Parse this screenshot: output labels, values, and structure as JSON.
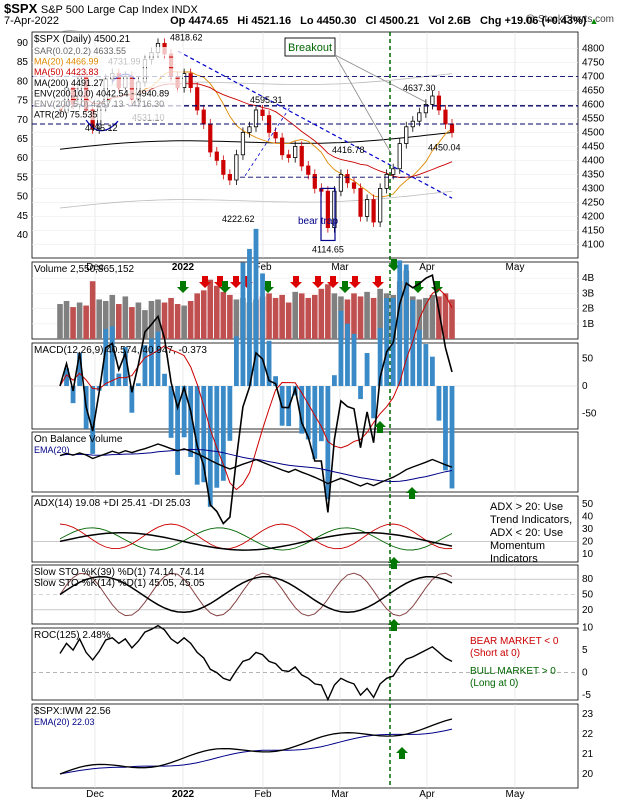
{
  "header": {
    "symbol": "$SPX",
    "name": "S&P 500 Large Cap Index  INDX",
    "date": "7-Apr-2022",
    "open": "Op 4474.65",
    "high": "Hi 4521.16",
    "low": "Lo 4450.30",
    "close": "Cl 4500.21",
    "volume": "Vol 2.6B",
    "change": "Chg +19.06 (+0.43%)",
    "change_marker": "▲",
    "watermark": "@ StockCharts.com"
  },
  "colors": {
    "up": "#000000",
    "down": "#cc0000",
    "volume_up": "#808080",
    "volume_down": "#c05050",
    "ma20": "#e08a00",
    "ma50": "#cc0000",
    "ma200": "#000000",
    "trend": "#0000cc",
    "macd_hist": "#3a8ac8",
    "marker_red": "#dd0000",
    "marker_green": "#007700",
    "signal_line": "#006600"
  },
  "months": [
    "Dec",
    "2022",
    "Feb",
    "Mar",
    "Apr",
    "May"
  ],
  "price_panel": {
    "title": "$SPX (Daily) 4500.21",
    "legend": [
      "SAR(0.02,0.2) 4633.55",
      "MA(20) 4466.99",
      "MA(50) 4423.83",
      "MA(200) 4491.27",
      "ENV(200,10.0) 4042.54 - 4940.89",
      "ENV(200,5.0) 4267.13 - 4716.30",
      "ATR(20) 75.535"
    ],
    "y_ticks_right": [
      "4800",
      "4750",
      "4700",
      "4650",
      "4600",
      "4550",
      "4500",
      "4450",
      "4400",
      "4350",
      "4300",
      "4250",
      "4200",
      "4150",
      "4100"
    ],
    "y_ticks_left": [
      "90",
      "85",
      "80",
      "75",
      "70",
      "65",
      "60",
      "55",
      "50",
      "45",
      "40"
    ],
    "price_labels": [
      "4818.62",
      "4731.99",
      "4495.12",
      "4531.10",
      "4595.31",
      "4222.62",
      "4416.78",
      "4114.65",
      "4637.30",
      "4450.04"
    ],
    "annotations": {
      "breakout": "Breakout",
      "bear_trap": "bear trap"
    }
  },
  "volume_panel": {
    "title": "Volume 2,550,865,152",
    "y_ticks": [
      "4B",
      "3B",
      "2B",
      "1B"
    ]
  },
  "macd_panel": {
    "title": "MACD(12,26,9) 40.574, 40.947, -0.373",
    "y_ticks": [
      "50",
      "0",
      "-50"
    ]
  },
  "obv_panel": {
    "title": "On Balance Volume",
    "ema": "EMA(20)"
  },
  "adx_panel": {
    "title": "ADX(14) 19.08  +DI 25.41  -DI 25.03",
    "y_ticks": [
      "50",
      "40",
      "30",
      "20",
      "10"
    ],
    "note": [
      "ADX > 20: Use",
      "Trend Indicators,",
      "ADX < 20: Use",
      "Momentum",
      "Indicators"
    ]
  },
  "sto_panel": {
    "title1": "Slow STO %K(39) %D(1) 74.14, 74.14",
    "title2": "Slow STO %K(14) %D(1) 45.05, 45.05",
    "y_ticks": [
      "80",
      "50",
      "20"
    ]
  },
  "roc_panel": {
    "title": "ROC(125) 2.48%",
    "y_ticks": [
      "10",
      "5",
      "0",
      "-5"
    ],
    "bear": [
      "BEAR MARKET < 0",
      "(Short at 0)"
    ],
    "bull": [
      "BULL MARKET > 0",
      "(Long at 0)"
    ]
  },
  "rel_panel": {
    "title": "$SPX:IWM 22.56",
    "ema": "EMA(20) 22.03",
    "y_ticks": [
      "23",
      "22",
      "21",
      "20"
    ]
  },
  "chart_data": {
    "type": "line",
    "title": "$SPX (Daily) 4500.21",
    "x_labels": [
      "Dec",
      "2022",
      "Feb",
      "Mar",
      "Apr",
      "May"
    ],
    "ylim": [
      4080,
      4830
    ],
    "series": [
      {
        "name": "$SPX (Daily)",
        "values": [
          4570,
          4660,
          4600,
          4700,
          4580,
          4513,
          4590,
          4690,
          4710,
          4660,
          4700,
          4620,
          4680,
          4760,
          4785,
          4818,
          4780,
          4700,
          4660,
          4710,
          4660,
          4580,
          4530,
          4430,
          4400,
          4350,
          4330,
          4420,
          4500,
          4520,
          4580,
          4560,
          4500,
          4480,
          4420,
          4410,
          4450,
          4380,
          4350,
          4300,
          4290,
          4160,
          4290,
          4350,
          4320,
          4300,
          4200,
          4260,
          4180,
          4300,
          4350,
          4370,
          4460,
          4520,
          4540,
          4570,
          4600,
          4630,
          4580,
          4530,
          4500
        ]
      }
    ],
    "volume": [
      2.3,
      2.5,
      2.1,
      2.4,
      2.2,
      3.8,
      2.6,
      2.5,
      2.9,
      2.3,
      2.8,
      2.1,
      2.4,
      1.9,
      2.5,
      2.6,
      2.4,
      2.7,
      2.3,
      2.2,
      2.5,
      3.0,
      3.2,
      3.9,
      3.5,
      3.1,
      2.9,
      2.6,
      2.7,
      2.4,
      2.6,
      2.8,
      3.0,
      2.7,
      2.9,
      2.4,
      3.1,
      3.0,
      2.7,
      2.9,
      3.3,
      3.6,
      3.0,
      2.8,
      2.6,
      3.0,
      2.8,
      3.1,
      2.7,
      3.3,
      3.0,
      2.9,
      3.8,
      4.5,
      2.8,
      2.6,
      2.7,
      2.9,
      2.8,
      3.0,
      2.6
    ]
  }
}
